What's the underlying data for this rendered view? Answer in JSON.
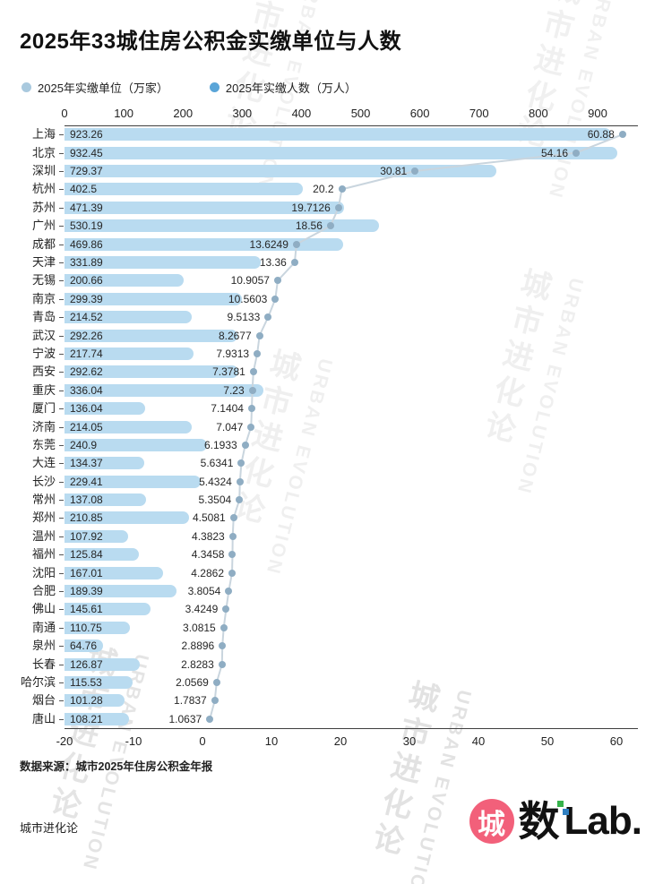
{
  "title": "2025年33城住房公积金实缴单位与人数",
  "legend": [
    {
      "label": "2025年实缴单位（万家）",
      "color": "#a9c9de"
    },
    {
      "label": "2025年实缴人数（万人）",
      "color": "#5aa5d8"
    }
  ],
  "colors": {
    "bar": "#b9dbf0",
    "dot": "#8fadc3",
    "line": "#c9d5de",
    "axis": "#3f3f3f"
  },
  "chart_data": {
    "type": "bar",
    "orientation": "horizontal",
    "title": "2025年33城住房公积金实缴单位与人数",
    "categories": [
      "上海",
      "北京",
      "深圳",
      "杭州",
      "苏州",
      "广州",
      "成都",
      "天津",
      "无锡",
      "南京",
      "青岛",
      "武汉",
      "宁波",
      "西安",
      "重庆",
      "厦门",
      "济南",
      "东莞",
      "大连",
      "长沙",
      "常州",
      "郑州",
      "温州",
      "福州",
      "沈阳",
      "合肥",
      "佛山",
      "南通",
      "泉州",
      "长春",
      "哈尔滨",
      "烟台",
      "唐山"
    ],
    "series": [
      {
        "name": "2025年实缴人数（万人）",
        "style": "bar",
        "values": [
          923.26,
          932.45,
          729.37,
          402.5,
          471.39,
          530.19,
          469.86,
          331.89,
          200.66,
          299.39,
          214.52,
          292.26,
          217.74,
          292.62,
          336.04,
          136.04,
          214.05,
          240.9,
          134.37,
          229.41,
          137.08,
          210.85,
          107.92,
          125.84,
          167.01,
          189.39,
          145.61,
          110.75,
          64.76,
          126.87,
          115.53,
          101.28,
          108.21
        ]
      },
      {
        "name": "2025年实缴单位（万家）",
        "style": "dot-line",
        "values": [
          60.88,
          54.16,
          30.81,
          20.2,
          19.7126,
          18.56,
          13.6249,
          13.36,
          10.9057,
          10.5603,
          9.5133,
          8.2677,
          7.9313,
          7.3781,
          7.23,
          7.1404,
          7.047,
          6.1933,
          5.6341,
          5.4324,
          5.3504,
          4.5081,
          4.3823,
          4.3458,
          4.2862,
          3.8054,
          3.4249,
          3.0815,
          2.8896,
          2.8283,
          2.0569,
          1.7837,
          1.0637
        ]
      }
    ],
    "top_axis": {
      "ticks": [
        0,
        100,
        200,
        300,
        400,
        500,
        600,
        700,
        800,
        900
      ],
      "range": [
        0,
        965
      ]
    },
    "bottom_axis": {
      "ticks": [
        -20,
        -10,
        0,
        10,
        20,
        30,
        40,
        50,
        60
      ],
      "range": [
        -20,
        60
      ]
    },
    "grid": false,
    "legend_position": "top"
  },
  "source": "数据来源：城市2025年住房公积金年报",
  "footer_brand": "城市进化论",
  "logo": {
    "part1": "城",
    "part2": "数",
    "part3": "Lab."
  },
  "watermark": {
    "cn": "城市进化论",
    "en": "URBAN EVOLUTION"
  }
}
